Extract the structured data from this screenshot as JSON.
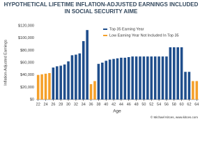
{
  "chart_data": {
    "type": "bar",
    "title": "HYPOTHETICAL LIFETIME INFLATION-ADJUSTED EARNINGS INCLUDED IN SOCIAL SECURITY AIME",
    "y_label": "Inflation-Adjusted Earnings",
    "x_label": "Age",
    "source": "© Michael Kitces, www.kitces.com",
    "x": [
      22,
      23,
      24,
      25,
      26,
      27,
      28,
      29,
      30,
      31,
      32,
      33,
      34,
      35,
      36,
      37,
      38,
      39,
      40,
      41,
      42,
      43,
      44,
      45,
      46,
      47,
      48,
      49,
      50,
      51,
      52,
      53,
      54,
      55,
      56,
      57,
      58,
      59,
      60,
      61,
      62,
      63,
      64
    ],
    "series": [
      {
        "name": "Top 35 Earning Year",
        "color": "#1f4e8c",
        "values": [
          null,
          null,
          null,
          null,
          52000,
          54000,
          55000,
          57000,
          62000,
          72000,
          73000,
          75000,
          95000,
          113000,
          null,
          null,
          58000,
          60000,
          63000,
          65000,
          66000,
          67000,
          68000,
          68000,
          69000,
          70000,
          70000,
          70000,
          70000,
          70000,
          70000,
          70000,
          70000,
          70000,
          70000,
          85000,
          85000,
          85000,
          85000,
          45000,
          45000,
          null,
          null
        ]
      },
      {
        "name": "Low Earning Year Not Included In Top 35",
        "color": "#f5a02a",
        "values": [
          40000,
          41000,
          42000,
          43000,
          null,
          null,
          null,
          null,
          null,
          null,
          null,
          null,
          null,
          null,
          25000,
          30000,
          null,
          null,
          null,
          null,
          null,
          null,
          null,
          null,
          null,
          null,
          null,
          null,
          null,
          null,
          null,
          null,
          null,
          null,
          null,
          null,
          null,
          null,
          null,
          null,
          null,
          30000,
          30000
        ]
      }
    ],
    "xlim": [
      21.5,
      64.5
    ],
    "xticks": [
      22,
      24,
      26,
      28,
      30,
      32,
      34,
      36,
      38,
      40,
      42,
      44,
      46,
      48,
      50,
      52,
      54,
      56,
      58,
      60,
      62,
      64
    ],
    "ylim": [
      0,
      120000
    ],
    "yticks": [
      {
        "value": 0,
        "label": "$0"
      },
      {
        "value": 20000,
        "label": "$20,000"
      },
      {
        "value": 40000,
        "label": "$40,000"
      },
      {
        "value": 60000,
        "label": "$60,000"
      },
      {
        "value": 80000,
        "label": "$80,000"
      },
      {
        "value": 100000,
        "label": "$100,000"
      },
      {
        "value": 120000,
        "label": "$120,000"
      }
    ],
    "grid": false,
    "legend": "top-right"
  }
}
